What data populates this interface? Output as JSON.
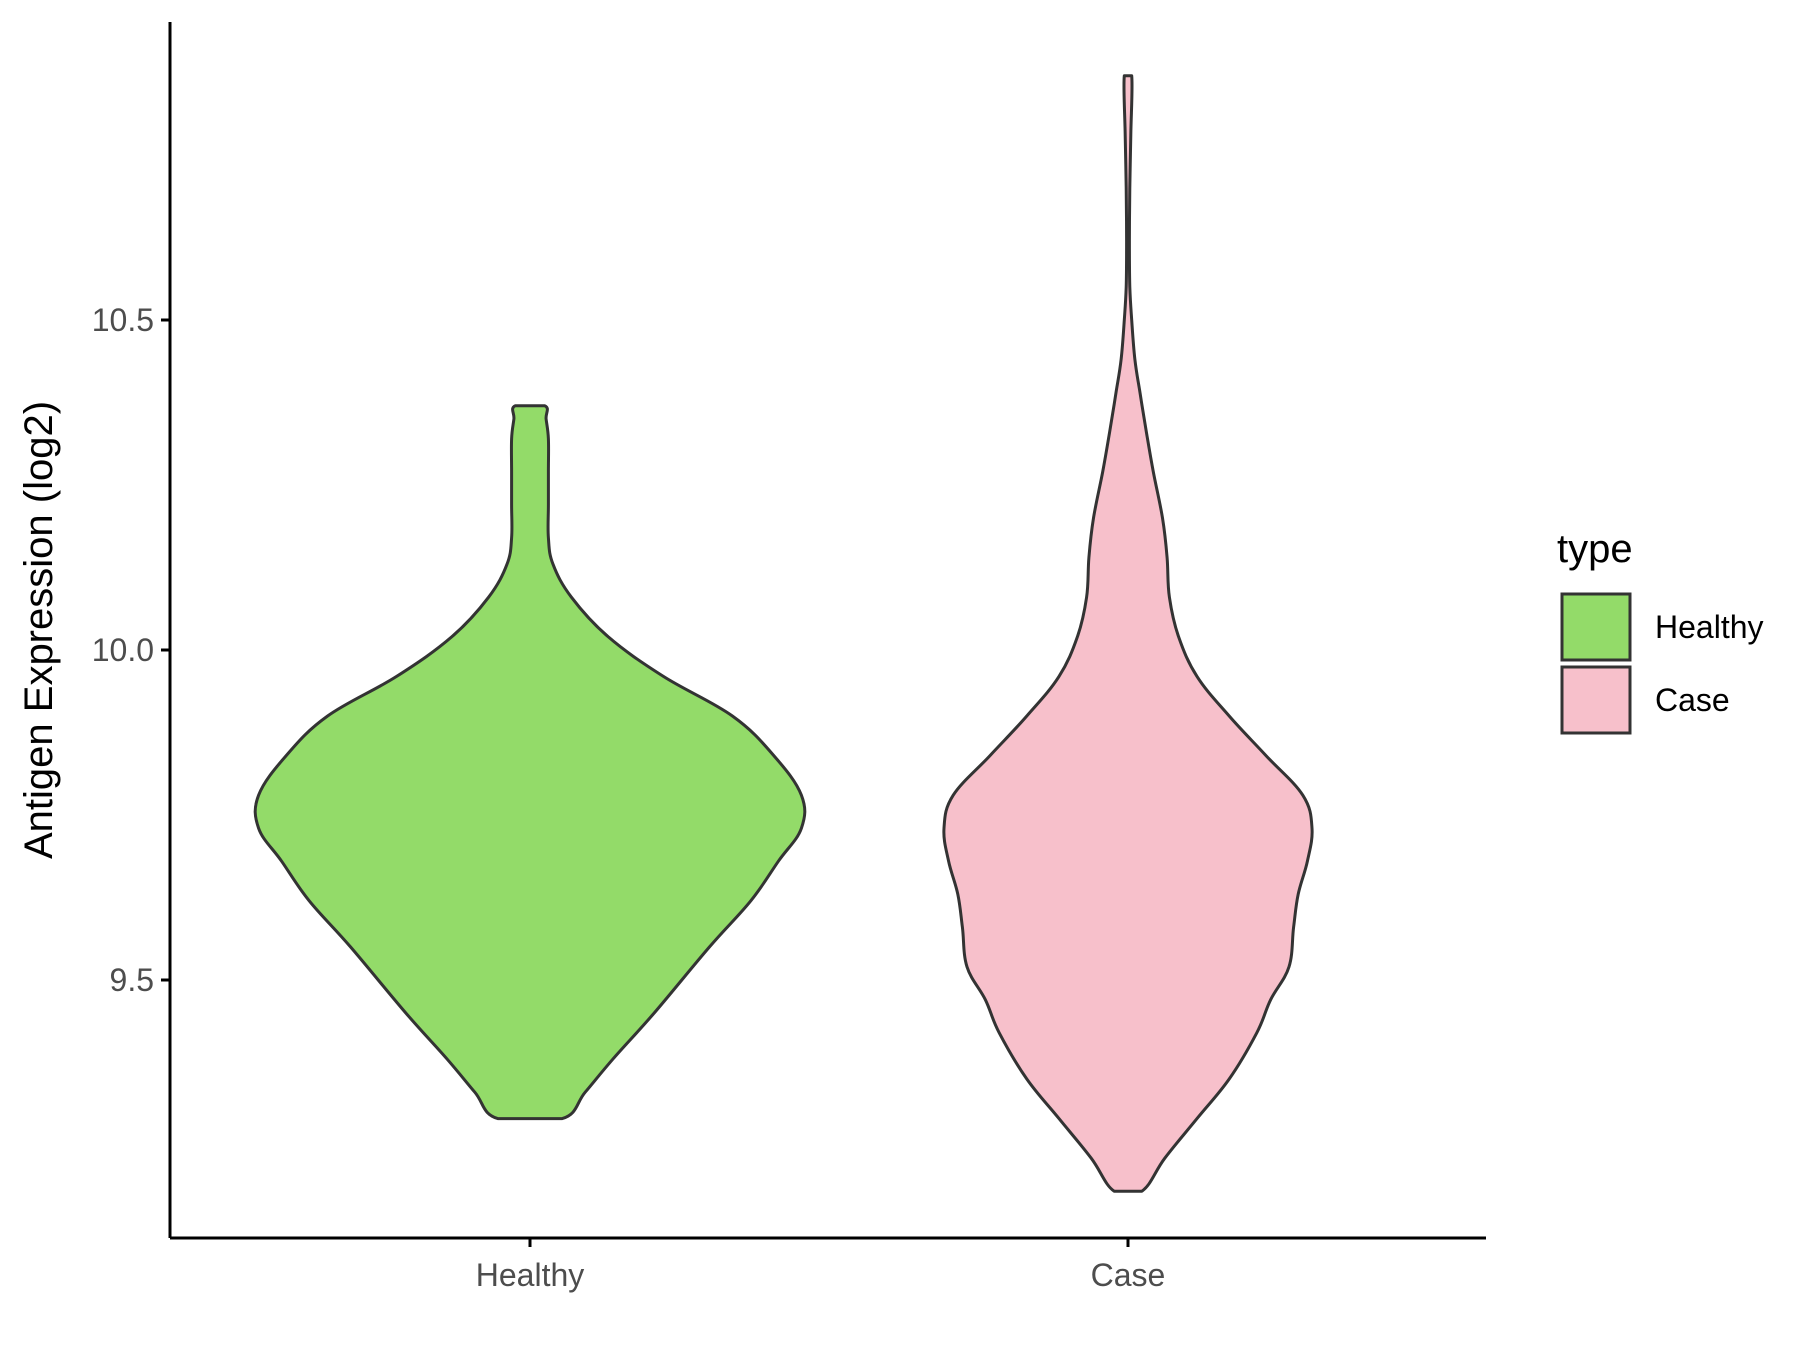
{
  "chart_data": {
    "type": "violin",
    "title": "",
    "xlabel": "",
    "ylabel": "Antigen Expression (log2)",
    "categories": [
      "Healthy",
      "Case"
    ],
    "y_ticks": [
      "9.5",
      "10.0",
      "10.5"
    ],
    "y_tick_values": [
      9.5,
      10.0,
      10.5
    ],
    "ylim": [
      9.1,
      10.95
    ],
    "grid": false,
    "legend": {
      "title": "type",
      "placement": "right",
      "entries": [
        {
          "label": "Healthy",
          "color": "#93DB69"
        },
        {
          "label": "Case",
          "color": "#F7C0CB"
        }
      ]
    },
    "series": [
      {
        "category": "Healthy",
        "color": "#93DB69",
        "min": 9.29,
        "max": 10.37,
        "density_profile": [
          [
            9.29,
            0.07
          ],
          [
            9.33,
            0.12
          ],
          [
            9.38,
            0.18
          ],
          [
            9.45,
            0.27
          ],
          [
            9.55,
            0.39
          ],
          [
            9.62,
            0.48
          ],
          [
            9.68,
            0.54
          ],
          [
            9.73,
            0.59
          ],
          [
            9.78,
            0.59
          ],
          [
            9.84,
            0.53
          ],
          [
            9.9,
            0.44
          ],
          [
            9.96,
            0.29
          ],
          [
            10.02,
            0.17
          ],
          [
            10.08,
            0.09
          ],
          [
            10.13,
            0.05
          ],
          [
            10.17,
            0.04
          ],
          [
            10.22,
            0.04
          ],
          [
            10.27,
            0.04
          ],
          [
            10.32,
            0.04
          ],
          [
            10.35,
            0.035
          ],
          [
            10.37,
            0.032
          ]
        ]
      },
      {
        "category": "Case",
        "color": "#F7C0CB",
        "min": 9.18,
        "max": 10.87,
        "density_profile": [
          [
            9.18,
            0.03
          ],
          [
            9.23,
            0.08
          ],
          [
            9.29,
            0.15
          ],
          [
            9.35,
            0.22
          ],
          [
            9.42,
            0.28
          ],
          [
            9.47,
            0.31
          ],
          [
            9.52,
            0.35
          ],
          [
            9.58,
            0.36
          ],
          [
            9.63,
            0.37
          ],
          [
            9.68,
            0.39
          ],
          [
            9.73,
            0.4
          ],
          [
            9.78,
            0.38
          ],
          [
            9.84,
            0.3
          ],
          [
            9.9,
            0.22
          ],
          [
            9.96,
            0.15
          ],
          [
            10.02,
            0.11
          ],
          [
            10.08,
            0.09
          ],
          [
            10.14,
            0.085
          ],
          [
            10.2,
            0.075
          ],
          [
            10.27,
            0.055
          ],
          [
            10.33,
            0.04
          ],
          [
            10.39,
            0.026
          ],
          [
            10.44,
            0.015
          ],
          [
            10.5,
            0.008
          ],
          [
            10.55,
            0.004
          ],
          [
            10.62,
            0.003
          ],
          [
            10.7,
            0.004
          ],
          [
            10.78,
            0.006
          ],
          [
            10.87,
            0.008
          ]
        ]
      }
    ]
  }
}
